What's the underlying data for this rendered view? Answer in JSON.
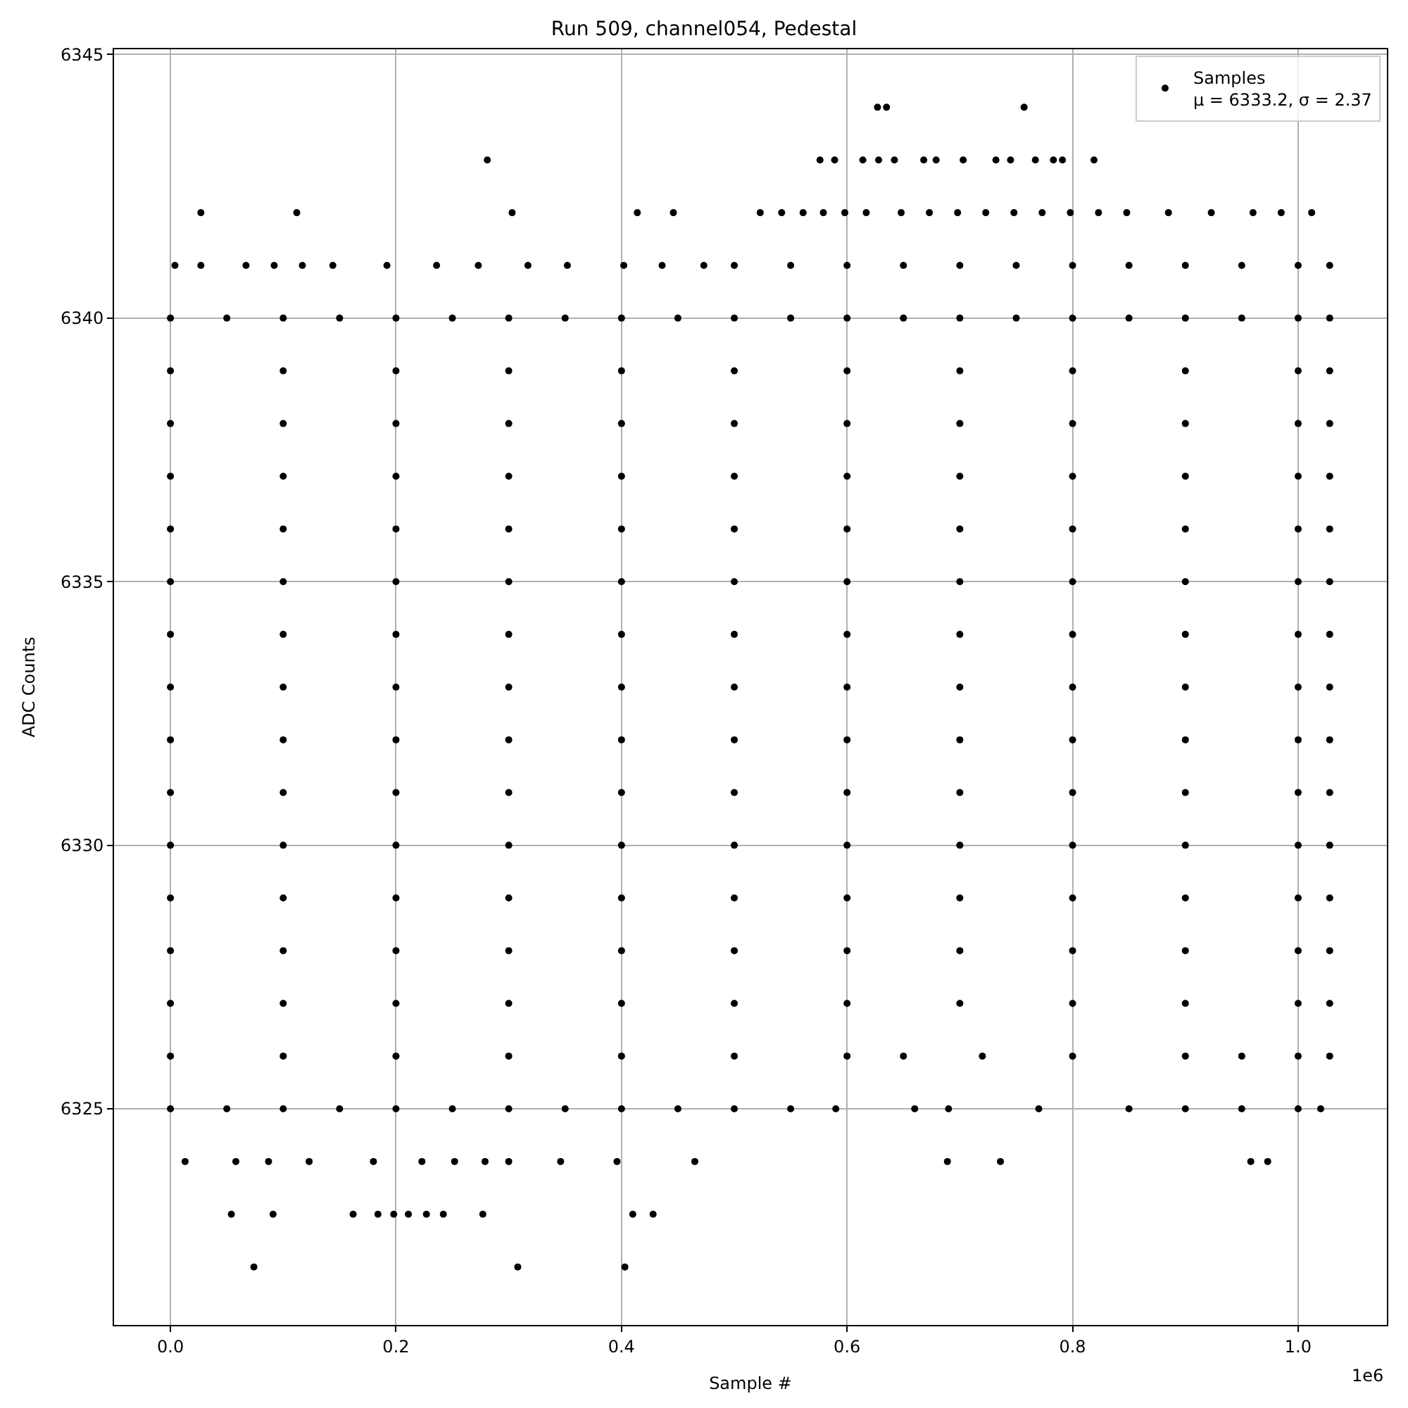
{
  "chart_data": {
    "type": "scatter",
    "title": "Run 509, channel054, Pedestal",
    "xlabel": "Sample #",
    "ylabel": "ADC Counts",
    "xlim": [
      -0.05,
      1.0787
    ],
    "ylim": [
      6320.9,
      6345.1
    ],
    "xticks": [
      {
        "value": 0,
        "label": "0.0"
      },
      0.2,
      0.4,
      0.6,
      0.8,
      {
        "value": 1,
        "label": "1.0"
      }
    ],
    "yticks": [
      6325,
      6330,
      6335,
      6340,
      6345
    ],
    "grid": true,
    "legend": "top right",
    "marker": "circle",
    "annotations": [
      "1e6"
    ],
    "series": [
      {
        "name": "Samples\nμ = 6333.2, σ = 2.37",
        "color": "#000000",
        "x": [
          0.627,
          0.635,
          0.757,
          0.281,
          0.576,
          0.589,
          0.614,
          0.628,
          0.642,
          0.668,
          0.679,
          0.703,
          0.732,
          0.745,
          0.767,
          0.783,
          0.791,
          0.819,
          0.027,
          0.112,
          0.303,
          0.414,
          0.446,
          0.523,
          0.542,
          0.561,
          0.579,
          0.598,
          0.617,
          0.648,
          0.673,
          0.698,
          0.723,
          0.748,
          0.773,
          0.798,
          0.823,
          0.848,
          0.885,
          0.923,
          0.96,
          0.985,
          1.012,
          0.004,
          0.027,
          0.067,
          0.092,
          0.117,
          0.144,
          0.192,
          0.236,
          0.273,
          0.317,
          0.352,
          0.402,
          0.436,
          0.473,
          0.5,
          0.55,
          0.6,
          0.65,
          0.7,
          0.75,
          0.8,
          0.85,
          0.9,
          0.95,
          1.0,
          1.028,
          0,
          0.05,
          0.1,
          0.15,
          0.2,
          0.25,
          0.3,
          0.35,
          0.4,
          0.45,
          0.5,
          0.55,
          0.6,
          0.65,
          0.7,
          0.75,
          0.8,
          0.85,
          0.9,
          0.95,
          1.0,
          1.028,
          0,
          0.1,
          0.2,
          0.3,
          0.4,
          0.5,
          0.6,
          0.7,
          0.8,
          0.9,
          1.0,
          1.028,
          0,
          0.1,
          0.2,
          0.3,
          0.4,
          0.5,
          0.6,
          0.7,
          0.8,
          0.9,
          1.0,
          1.028,
          0,
          0.1,
          0.2,
          0.3,
          0.4,
          0.5,
          0.6,
          0.7,
          0.8,
          0.9,
          1.0,
          1.028,
          0,
          0.1,
          0.2,
          0.3,
          0.4,
          0.5,
          0.6,
          0.7,
          0.8,
          0.9,
          1.0,
          1.028,
          0,
          0.1,
          0.2,
          0.3,
          0.4,
          0.5,
          0.6,
          0.7,
          0.8,
          0.9,
          1.0,
          1.028,
          0,
          0.1,
          0.2,
          0.3,
          0.4,
          0.5,
          0.6,
          0.7,
          0.8,
          0.9,
          1.0,
          1.028,
          0,
          0.1,
          0.2,
          0.3,
          0.4,
          0.5,
          0.6,
          0.7,
          0.8,
          0.9,
          1.0,
          1.028,
          0,
          0.1,
          0.2,
          0.3,
          0.4,
          0.5,
          0.6,
          0.7,
          0.8,
          0.9,
          1.0,
          1.028,
          0,
          0.1,
          0.2,
          0.3,
          0.4,
          0.5,
          0.6,
          0.7,
          0.8,
          0.9,
          1.0,
          1.028,
          0,
          0.1,
          0.2,
          0.3,
          0.4,
          0.5,
          0.6,
          0.7,
          0.8,
          0.9,
          1.0,
          1.028,
          0,
          0.1,
          0.2,
          0.3,
          0.4,
          0.5,
          0.6,
          0.7,
          0.8,
          0.9,
          1.0,
          1.028,
          0,
          0.1,
          0.2,
          0.3,
          0.4,
          0.5,
          0.6,
          0.7,
          0.8,
          0.9,
          1.0,
          1.028,
          0,
          0.1,
          0.2,
          0.3,
          0.4,
          0.5,
          0.6,
          0.7,
          0.8,
          0.9,
          1.0,
          1.028,
          0,
          0.1,
          0.2,
          0.3,
          0.4,
          0.5,
          0.6,
          0.65,
          0.72,
          0.8,
          0.9,
          0.95,
          1.0,
          1.028,
          0,
          0.05,
          0.1,
          0.15,
          0.2,
          0.25,
          0.3,
          0.35,
          0.4,
          0.45,
          0.5,
          0.55,
          0.59,
          0.66,
          0.69,
          0.77,
          0.85,
          0.9,
          0.95,
          1.0,
          1.02,
          0.013,
          0.058,
          0.087,
          0.123,
          0.18,
          0.223,
          0.252,
          0.279,
          0.3,
          0.346,
          0.396,
          0.465,
          0.689,
          0.736,
          0.958,
          0.973,
          0.054,
          0.091,
          0.162,
          0.184,
          0.198,
          0.211,
          0.227,
          0.242,
          0.277,
          0.41,
          0.428,
          0.074,
          0.308,
          0.403
        ],
        "values": [
          6344,
          6344,
          6344,
          6343,
          6343,
          6343,
          6343,
          6343,
          6343,
          6343,
          6343,
          6343,
          6343,
          6343,
          6343,
          6343,
          6343,
          6343,
          6342,
          6342,
          6342,
          6342,
          6342,
          6342,
          6342,
          6342,
          6342,
          6342,
          6342,
          6342,
          6342,
          6342,
          6342,
          6342,
          6342,
          6342,
          6342,
          6342,
          6342,
          6342,
          6342,
          6342,
          6342,
          6341,
          6341,
          6341,
          6341,
          6341,
          6341,
          6341,
          6341,
          6341,
          6341,
          6341,
          6341,
          6341,
          6341,
          6341,
          6341,
          6341,
          6341,
          6341,
          6341,
          6341,
          6341,
          6341,
          6341,
          6341,
          6341,
          6340,
          6340,
          6340,
          6340,
          6340,
          6340,
          6340,
          6340,
          6340,
          6340,
          6340,
          6340,
          6340,
          6340,
          6340,
          6340,
          6340,
          6340,
          6340,
          6340,
          6340,
          6340,
          6339,
          6339,
          6339,
          6339,
          6339,
          6339,
          6339,
          6339,
          6339,
          6339,
          6339,
          6339,
          6338,
          6338,
          6338,
          6338,
          6338,
          6338,
          6338,
          6338,
          6338,
          6338,
          6338,
          6338,
          6337,
          6337,
          6337,
          6337,
          6337,
          6337,
          6337,
          6337,
          6337,
          6337,
          6337,
          6337,
          6336,
          6336,
          6336,
          6336,
          6336,
          6336,
          6336,
          6336,
          6336,
          6336,
          6336,
          6336,
          6335,
          6335,
          6335,
          6335,
          6335,
          6335,
          6335,
          6335,
          6335,
          6335,
          6335,
          6335,
          6334,
          6334,
          6334,
          6334,
          6334,
          6334,
          6334,
          6334,
          6334,
          6334,
          6334,
          6334,
          6333,
          6333,
          6333,
          6333,
          6333,
          6333,
          6333,
          6333,
          6333,
          6333,
          6333,
          6333,
          6332,
          6332,
          6332,
          6332,
          6332,
          6332,
          6332,
          6332,
          6332,
          6332,
          6332,
          6332,
          6331,
          6331,
          6331,
          6331,
          6331,
          6331,
          6331,
          6331,
          6331,
          6331,
          6331,
          6331,
          6330,
          6330,
          6330,
          6330,
          6330,
          6330,
          6330,
          6330,
          6330,
          6330,
          6330,
          6330,
          6329,
          6329,
          6329,
          6329,
          6329,
          6329,
          6329,
          6329,
          6329,
          6329,
          6329,
          6329,
          6328,
          6328,
          6328,
          6328,
          6328,
          6328,
          6328,
          6328,
          6328,
          6328,
          6328,
          6328,
          6327,
          6327,
          6327,
          6327,
          6327,
          6327,
          6327,
          6327,
          6327,
          6327,
          6327,
          6327,
          6326,
          6326,
          6326,
          6326,
          6326,
          6326,
          6326,
          6326,
          6326,
          6326,
          6326,
          6326,
          6326,
          6326,
          6325,
          6325,
          6325,
          6325,
          6325,
          6325,
          6325,
          6325,
          6325,
          6325,
          6325,
          6325,
          6325,
          6325,
          6325,
          6325,
          6325,
          6325,
          6325,
          6325,
          6325,
          6324,
          6324,
          6324,
          6324,
          6324,
          6324,
          6324,
          6324,
          6324,
          6324,
          6324,
          6324,
          6324,
          6324,
          6324,
          6324,
          6323,
          6323,
          6323,
          6323,
          6323,
          6323,
          6323,
          6323,
          6323,
          6323,
          6323,
          6322,
          6322,
          6322
        ]
      }
    ]
  }
}
